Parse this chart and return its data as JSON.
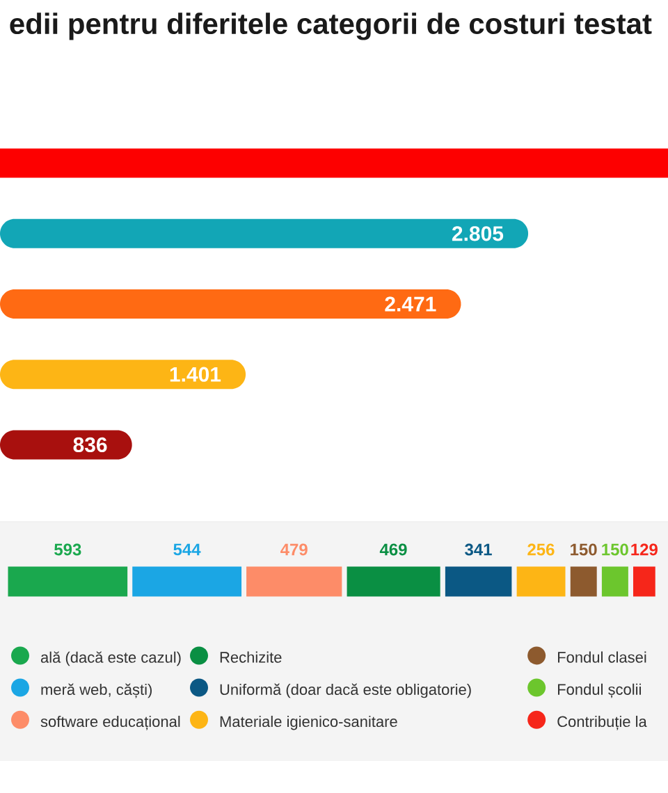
{
  "chart_data": [
    {
      "type": "bar",
      "orientation": "horizontal",
      "title": "edii pentru diferitele categorii de costuri testat",
      "categories": [
        null,
        null,
        null,
        null,
        null
      ],
      "values": [
        3500,
        2805,
        2471,
        1401,
        836
      ],
      "colors": [
        "#fd0000",
        "#12a6b6",
        "#ff6a13",
        "#fdb515",
        "#a8100e"
      ],
      "value_labels": [
        null,
        "2.805",
        "2.471",
        "1.401",
        "836"
      ],
      "xlim": [
        180,
        3500
      ]
    },
    {
      "type": "bar",
      "orientation": "horizontal",
      "stacked": true,
      "categories": [
        null
      ],
      "series": [
        {
          "name": "ală (dacă este cazul)",
          "color": "#1aa84e",
          "values": [
            593
          ]
        },
        {
          "name": "meră web, căști)",
          "color": "#1ba6e4",
          "values": [
            544
          ]
        },
        {
          "name": "software educațional",
          "color": "#fd8c68",
          "values": [
            479
          ]
        },
        {
          "name": "Rechizite",
          "color": "#0a8f43",
          "values": [
            469
          ]
        },
        {
          "name": "Uniformă (doar dacă este obligatorie)",
          "color": "#0b5884",
          "values": [
            341
          ]
        },
        {
          "name": "Materiale igienico-sanitare",
          "color": "#fdb515",
          "values": [
            256
          ]
        },
        {
          "name": "Fondul clasei",
          "color": "#8d5a2e",
          "values": [
            150
          ]
        },
        {
          "name": "Fondul școlii",
          "color": "#6cc62d",
          "values": [
            150
          ]
        },
        {
          "name": "Contribuție la",
          "color": "#f6261a",
          "values": [
            129
          ]
        }
      ],
      "data_labels": true,
      "xlim": [
        0,
        3160
      ],
      "legend": "bottom"
    }
  ]
}
